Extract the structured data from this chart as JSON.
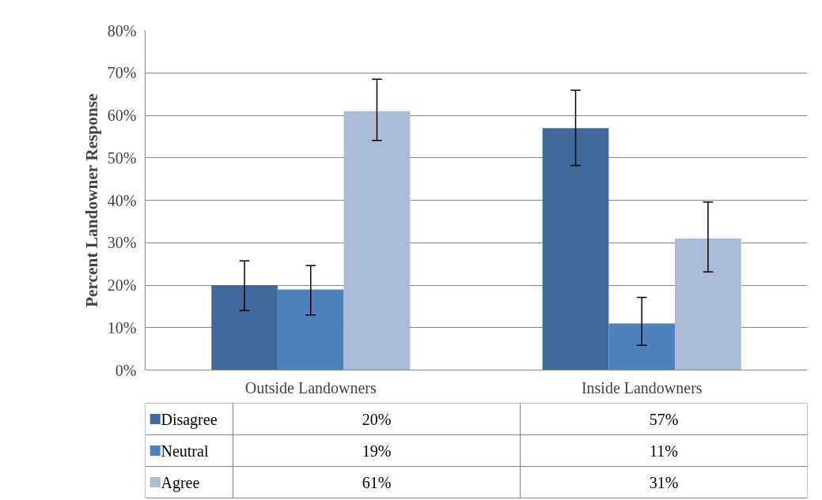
{
  "chart_data": {
    "type": "bar",
    "ylabel": "Percent Landowner Response",
    "categories": [
      "Outside Landowners",
      "Inside Landowners"
    ],
    "series": [
      {
        "name": "Disagree",
        "color": "#41699b",
        "values": [
          20,
          57
        ],
        "errors": [
          [
            14,
            25.7
          ],
          [
            48.2,
            65.9
          ]
        ],
        "value_labels": [
          "20%",
          "57%"
        ]
      },
      {
        "name": "Neutral",
        "color": "#4f81bd",
        "values": [
          19,
          11
        ],
        "errors": [
          [
            13,
            24.6
          ],
          [
            5.8,
            17.1
          ]
        ],
        "value_labels": [
          "19%",
          "11%"
        ]
      },
      {
        "name": "Agree",
        "color": "#aabad7",
        "values": [
          61,
          31
        ],
        "errors": [
          [
            54.1,
            68.5
          ],
          [
            23.1,
            39.6
          ]
        ],
        "value_labels": [
          "61%",
          "31%"
        ]
      }
    ],
    "ylim": [
      0,
      80
    ],
    "yticks": [
      {
        "value": 0,
        "label": "0%"
      },
      {
        "value": 10,
        "label": "10%"
      },
      {
        "value": 20,
        "label": "20%"
      },
      {
        "value": 30,
        "label": "30%"
      },
      {
        "value": 40,
        "label": "40%"
      },
      {
        "value": 50,
        "label": "50%"
      },
      {
        "value": 60,
        "label": "60%"
      },
      {
        "value": 70,
        "label": "70%"
      },
      {
        "value": 80,
        "label": "80%"
      }
    ],
    "grid": "y",
    "legend": "bottom"
  }
}
